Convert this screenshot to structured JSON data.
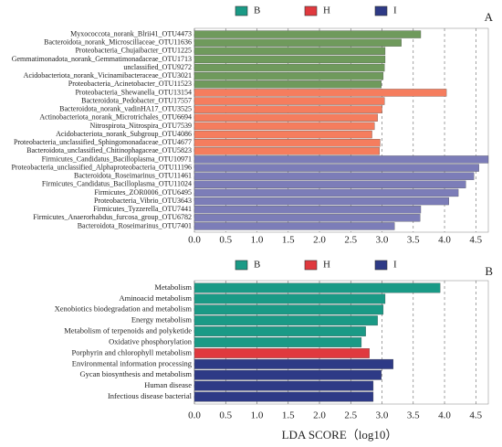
{
  "chart_data": [
    {
      "type": "bar",
      "orientation": "horizontal",
      "panel_label": "A",
      "grid": true,
      "xlim": [
        0,
        4.7
      ],
      "xticks": [
        {
          "value": 0,
          "label": "0.0"
        },
        0.5,
        {
          "value": 1,
          "label": "1.0"
        },
        1.5,
        {
          "value": 2,
          "label": "2.0"
        },
        2.5,
        {
          "value": 3,
          "label": "3.0"
        },
        3.5,
        {
          "value": 4,
          "label": "4.0"
        },
        4.5
      ],
      "series": [
        {
          "name": "B",
          "color": "#6f9a5c",
          "legend_color": "#1a9a86",
          "categories": [
            "Myxococcota_norank_Blrii41_OTU4473",
            "Bacteroidota_norank_Microscillaceae_OTU11636",
            "Proteobacteria_Chujaibacter_OTU1225",
            "Gemmatimonadota_norank_Gemmatimonadaceae_OTU1713",
            "unclassified_OTU9272",
            "Acidobacteriota_norank_Vicinamibacteraceae_OTU3021",
            "Proteobacteria_Acinetobacter_OTU11523"
          ],
          "values": [
            3.62,
            3.31,
            3.05,
            3.05,
            3.04,
            3.02,
            2.99
          ]
        },
        {
          "name": "H",
          "color": "#f57d5e",
          "legend_color": "#e0393e",
          "categories": [
            "Proteobacteria_Shewanella_OTU13154",
            "Bacteroidota_Pedobacter_OTU17557",
            "Bacteroidota_norank_vadinHA17_OTU3525",
            "Actinobacteriota_norank_Microtrichales_OTU6694",
            "Nitrospirota_Nitrospira_OTU7539",
            "Acidobacteriota_norank_Subgroup_OTU4086",
            "Proteobacteria_unclassified_Sphingomonadaceae_OTU4677",
            "Bacteroidota_unclassified_Chitinophagaceae_OTU5823"
          ],
          "values": [
            4.03,
            3.04,
            3.0,
            2.93,
            2.88,
            2.84,
            2.97,
            2.96
          ]
        },
        {
          "name": "I",
          "color": "#7c7db8",
          "legend_color": "#2e3a86",
          "categories": [
            "Firmicutes_Candidatus_Bacilloplasma_OTU10971",
            "Proteobacteria_unclassified_Alphaproteobacteria_OTU11196",
            "Bacteroidota_Roseimarinus_OTU11461",
            "Firmicutes_Candidatus_Bacilloplasma_OTU11024",
            "Firmicutes_ZOR0006_OTU6495",
            "Proteobacteria_Vibrio_OTU3643",
            "Firmicutes_Tyzzerella_OTU7441",
            "Firmicutes_Anaerorhabdus_furcosa_group_OTU6782",
            "Bacteroidota_Roseimarinus_OTU7401"
          ],
          "values": [
            4.7,
            4.55,
            4.47,
            4.34,
            4.22,
            4.07,
            3.62,
            3.61,
            3.2
          ]
        }
      ]
    },
    {
      "type": "bar",
      "orientation": "horizontal",
      "panel_label": "B",
      "grid": true,
      "x_label": "LDA SCORE（log10）",
      "xlim": [
        0,
        4.7
      ],
      "xticks": [
        {
          "value": 0,
          "label": "0.0"
        },
        0.5,
        {
          "value": 1,
          "label": "1.0"
        },
        1.5,
        {
          "value": 2,
          "label": "2.0"
        },
        2.5,
        {
          "value": 3,
          "label": "3.0"
        },
        3.5,
        {
          "value": 4,
          "label": "4.0"
        },
        4.5
      ],
      "series": [
        {
          "name": "B",
          "color": "#1a9a86",
          "legend_color": "#1a9a86",
          "categories": [
            "Metabolism",
            "Aminoacid metabolism",
            "Xenobiotics biodegradation and metabolism",
            "Energy metabolism",
            "Metabolism of terpenoids and polyketide",
            "Oxidative phosphorylation"
          ],
          "values": [
            3.93,
            3.05,
            3.02,
            2.93,
            2.74,
            2.67
          ]
        },
        {
          "name": "H",
          "color": "#e0393e",
          "legend_color": "#e0393e",
          "categories": [
            "Porphyrin and chlorophyll metabolism"
          ],
          "values": [
            2.8
          ]
        },
        {
          "name": "I",
          "color": "#2e3a86",
          "legend_color": "#2e3a86",
          "categories": [
            "Environmental information processing",
            "Gycan biosynthesis and metabolism",
            "Human disease",
            "Infectious disease bacterial"
          ],
          "values": [
            3.18,
            2.99,
            2.86,
            2.86
          ]
        }
      ]
    }
  ]
}
